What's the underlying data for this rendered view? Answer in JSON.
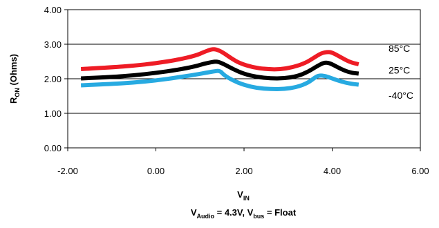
{
  "chart_data": {
    "type": "line",
    "xlabel": {
      "main": "V",
      "sub": "IN"
    },
    "ylabel": {
      "main": "R",
      "sub": "ON",
      "rest": " (Ohms)"
    },
    "condition": {
      "p1": "V",
      "p1_sub": "Audio",
      "p2": " = 4.3V, V",
      "p2_sub": "bus",
      "p3": " = Float"
    },
    "xlim": [
      -2.0,
      6.0
    ],
    "ylim": [
      0.0,
      4.0
    ],
    "x_ticks": [
      "-2.00",
      "0.00",
      "2.00",
      "4.00",
      "6.00"
    ],
    "y_ticks": [
      "0.00",
      "1.00",
      "2.00",
      "3.00",
      "4.00"
    ],
    "grid": "horizontal",
    "series": [
      {
        "name": "85°C",
        "color": "#ee1c25",
        "points": [
          [
            -1.7,
            2.28
          ],
          [
            -1.0,
            2.33
          ],
          [
            -0.5,
            2.38
          ],
          [
            0.0,
            2.45
          ],
          [
            0.5,
            2.55
          ],
          [
            0.9,
            2.67
          ],
          [
            1.1,
            2.78
          ],
          [
            1.25,
            2.85
          ],
          [
            1.35,
            2.86
          ],
          [
            1.5,
            2.78
          ],
          [
            1.7,
            2.6
          ],
          [
            1.9,
            2.45
          ],
          [
            2.2,
            2.33
          ],
          [
            2.5,
            2.28
          ],
          [
            2.8,
            2.27
          ],
          [
            3.1,
            2.33
          ],
          [
            3.4,
            2.46
          ],
          [
            3.6,
            2.62
          ],
          [
            3.75,
            2.74
          ],
          [
            3.9,
            2.78
          ],
          [
            4.0,
            2.76
          ],
          [
            4.2,
            2.62
          ],
          [
            4.4,
            2.48
          ],
          [
            4.6,
            2.42
          ]
        ]
      },
      {
        "name": "25°C",
        "color": "#000000",
        "points": [
          [
            -1.7,
            2.01
          ],
          [
            -1.0,
            2.05
          ],
          [
            -0.5,
            2.1
          ],
          [
            0.0,
            2.17
          ],
          [
            0.5,
            2.26
          ],
          [
            0.9,
            2.36
          ],
          [
            1.1,
            2.44
          ],
          [
            1.3,
            2.49
          ],
          [
            1.4,
            2.5
          ],
          [
            1.55,
            2.42
          ],
          [
            1.75,
            2.28
          ],
          [
            2.0,
            2.14
          ],
          [
            2.3,
            2.05
          ],
          [
            2.6,
            2.01
          ],
          [
            2.9,
            2.01
          ],
          [
            3.2,
            2.07
          ],
          [
            3.45,
            2.2
          ],
          [
            3.65,
            2.36
          ],
          [
            3.8,
            2.46
          ],
          [
            3.9,
            2.47
          ],
          [
            4.0,
            2.42
          ],
          [
            4.2,
            2.28
          ],
          [
            4.4,
            2.18
          ],
          [
            4.6,
            2.15
          ]
        ]
      },
      {
        "name": "-40°C",
        "color": "#27aae1",
        "points": [
          [
            -1.7,
            1.81
          ],
          [
            -1.0,
            1.85
          ],
          [
            -0.5,
            1.89
          ],
          [
            0.0,
            1.95
          ],
          [
            0.5,
            2.04
          ],
          [
            0.9,
            2.12
          ],
          [
            1.2,
            2.19
          ],
          [
            1.3,
            2.21
          ],
          [
            1.45,
            2.24
          ],
          [
            1.55,
            2.1
          ],
          [
            1.75,
            1.95
          ],
          [
            2.0,
            1.82
          ],
          [
            2.3,
            1.73
          ],
          [
            2.6,
            1.7
          ],
          [
            2.9,
            1.7
          ],
          [
            3.2,
            1.76
          ],
          [
            3.45,
            1.88
          ],
          [
            3.6,
            2.03
          ],
          [
            3.7,
            2.1
          ],
          [
            3.85,
            2.08
          ],
          [
            4.0,
            2.01
          ],
          [
            4.2,
            1.92
          ],
          [
            4.4,
            1.86
          ],
          [
            4.6,
            1.83
          ]
        ]
      }
    ],
    "legend_placement": "right-inline"
  }
}
